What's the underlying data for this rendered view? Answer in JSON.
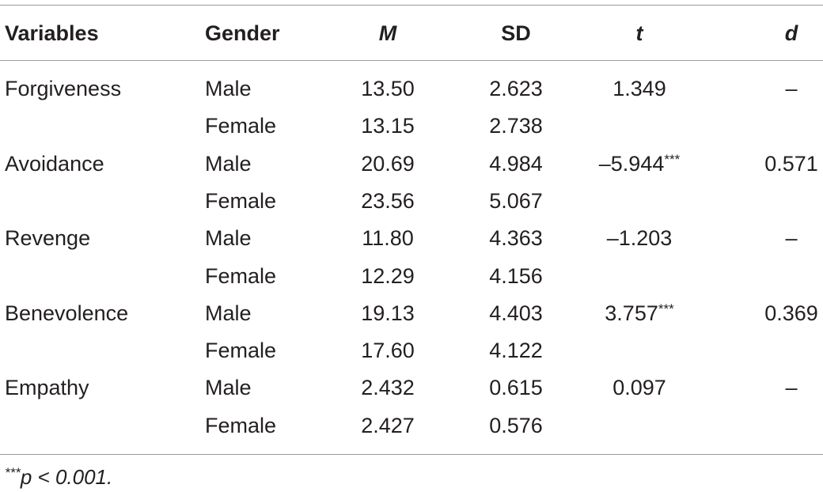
{
  "header": {
    "variables": "Variables",
    "gender": "Gender",
    "m": "M",
    "sd": "SD",
    "t": "t",
    "d": "d"
  },
  "rows": [
    {
      "variable": "Forgiveness",
      "gender": "Male",
      "m": "13.50",
      "sd": "2.623",
      "t": "1.349",
      "t_sig": "",
      "d": "–"
    },
    {
      "variable": "",
      "gender": "Female",
      "m": "13.15",
      "sd": "2.738",
      "t": "",
      "t_sig": "",
      "d": ""
    },
    {
      "variable": "Avoidance",
      "gender": "Male",
      "m": "20.69",
      "sd": "4.984",
      "t": "–5.944",
      "t_sig": "***",
      "d": "0.571"
    },
    {
      "variable": "",
      "gender": "Female",
      "m": "23.56",
      "sd": "5.067",
      "t": "",
      "t_sig": "",
      "d": ""
    },
    {
      "variable": "Revenge",
      "gender": "Male",
      "m": "11.80",
      "sd": "4.363",
      "t": "–1.203",
      "t_sig": "",
      "d": "–"
    },
    {
      "variable": "",
      "gender": "Female",
      "m": "12.29",
      "sd": "4.156",
      "t": "",
      "t_sig": "",
      "d": ""
    },
    {
      "variable": "Benevolence",
      "gender": "Male",
      "m": "19.13",
      "sd": "4.403",
      "t": "3.757",
      "t_sig": "***",
      "d": "0.369"
    },
    {
      "variable": "",
      "gender": "Female",
      "m": "17.60",
      "sd": "4.122",
      "t": "",
      "t_sig": "",
      "d": ""
    },
    {
      "variable": "Empathy",
      "gender": "Male",
      "m": "2.432",
      "sd": "0.615",
      "t": "0.097",
      "t_sig": "",
      "d": "–"
    },
    {
      "variable": "",
      "gender": "Female",
      "m": "2.427",
      "sd": "0.576",
      "t": "",
      "t_sig": "",
      "d": ""
    }
  ],
  "footnote": {
    "marker": "***",
    "text": "p < 0.001."
  }
}
